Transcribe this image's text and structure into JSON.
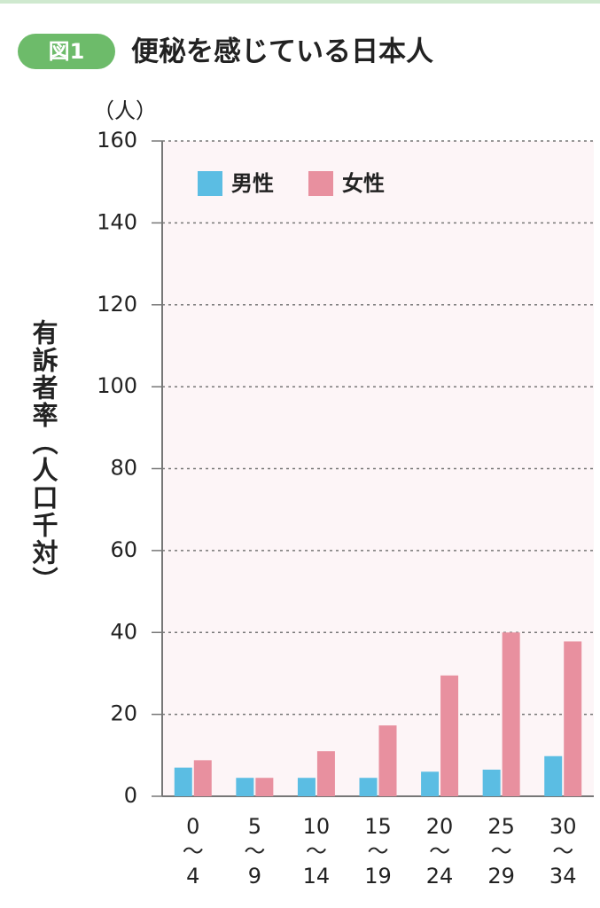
{
  "chart_data": {
    "type": "bar",
    "badge": "図1",
    "title": "便秘を感じている日本人",
    "unit": "（人）",
    "y_label": "有訴者率（人口千対）",
    "categories": [
      "0\n〜\n4",
      "5\n〜\n9",
      "10\n〜\n14",
      "15\n〜\n19",
      "20\n〜\n24",
      "25\n〜\n29",
      "30\n〜\n34"
    ],
    "series": [
      {
        "name": "男性",
        "color": "#5bbde3",
        "values": [
          7,
          4.5,
          4.5,
          4.5,
          6,
          6.5,
          9.8
        ]
      },
      {
        "name": "女性",
        "color": "#e8909f",
        "values": [
          8.8,
          4.5,
          11,
          17.3,
          29.5,
          40,
          37.8
        ]
      }
    ],
    "ylim": [
      0,
      160
    ],
    "yticks": [
      0,
      20,
      40,
      60,
      80,
      100,
      120,
      140,
      160
    ],
    "grid": true,
    "legend": "top-left"
  }
}
